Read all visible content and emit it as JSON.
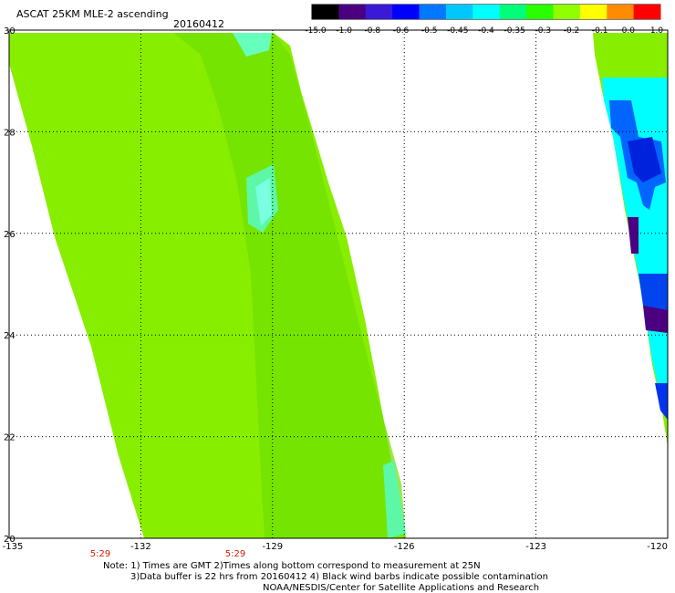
{
  "header": {
    "title": "ASCAT 25KM MLE-2 ascending",
    "date": "20160412"
  },
  "colorbar": {
    "labels": [
      "-15.0",
      "-1.0",
      "-0.8",
      "-0.6",
      "-0.5",
      "-0.45",
      "-0.4",
      "-0.35",
      "-0.3",
      "-0.2",
      "-0.1",
      "0.0",
      "1.0"
    ],
    "colors": [
      "#000000",
      "#4b0082",
      "#3a1ad6",
      "#0000ff",
      "#0078ff",
      "#00c8ff",
      "#00ffff",
      "#00ff78",
      "#2aff00",
      "#90ff00",
      "#ffff00",
      "#ff8c00",
      "#ff0000"
    ]
  },
  "map": {
    "lon_ticks": [
      "-135",
      "-132",
      "-129",
      "-126",
      "-123",
      "-120"
    ],
    "lat_ticks": [
      "30",
      "28",
      "26",
      "24",
      "22",
      "20"
    ],
    "times": [
      "5:29",
      "5:29"
    ],
    "swath_color": "#88ee00",
    "accent_blue": "#0000ee",
    "accent_cyan": "#00ffff"
  },
  "notes": {
    "line1": "Note: 1) Times are GMT 2)Times along bottom correspond to measurement at 25N",
    "line2": "3)Data buffer is 22 hrs from 20160412 4) Black wind barbs indicate possible contamination",
    "line3": "NOAA/NESDIS/Center for Satellite Applications and Research"
  }
}
